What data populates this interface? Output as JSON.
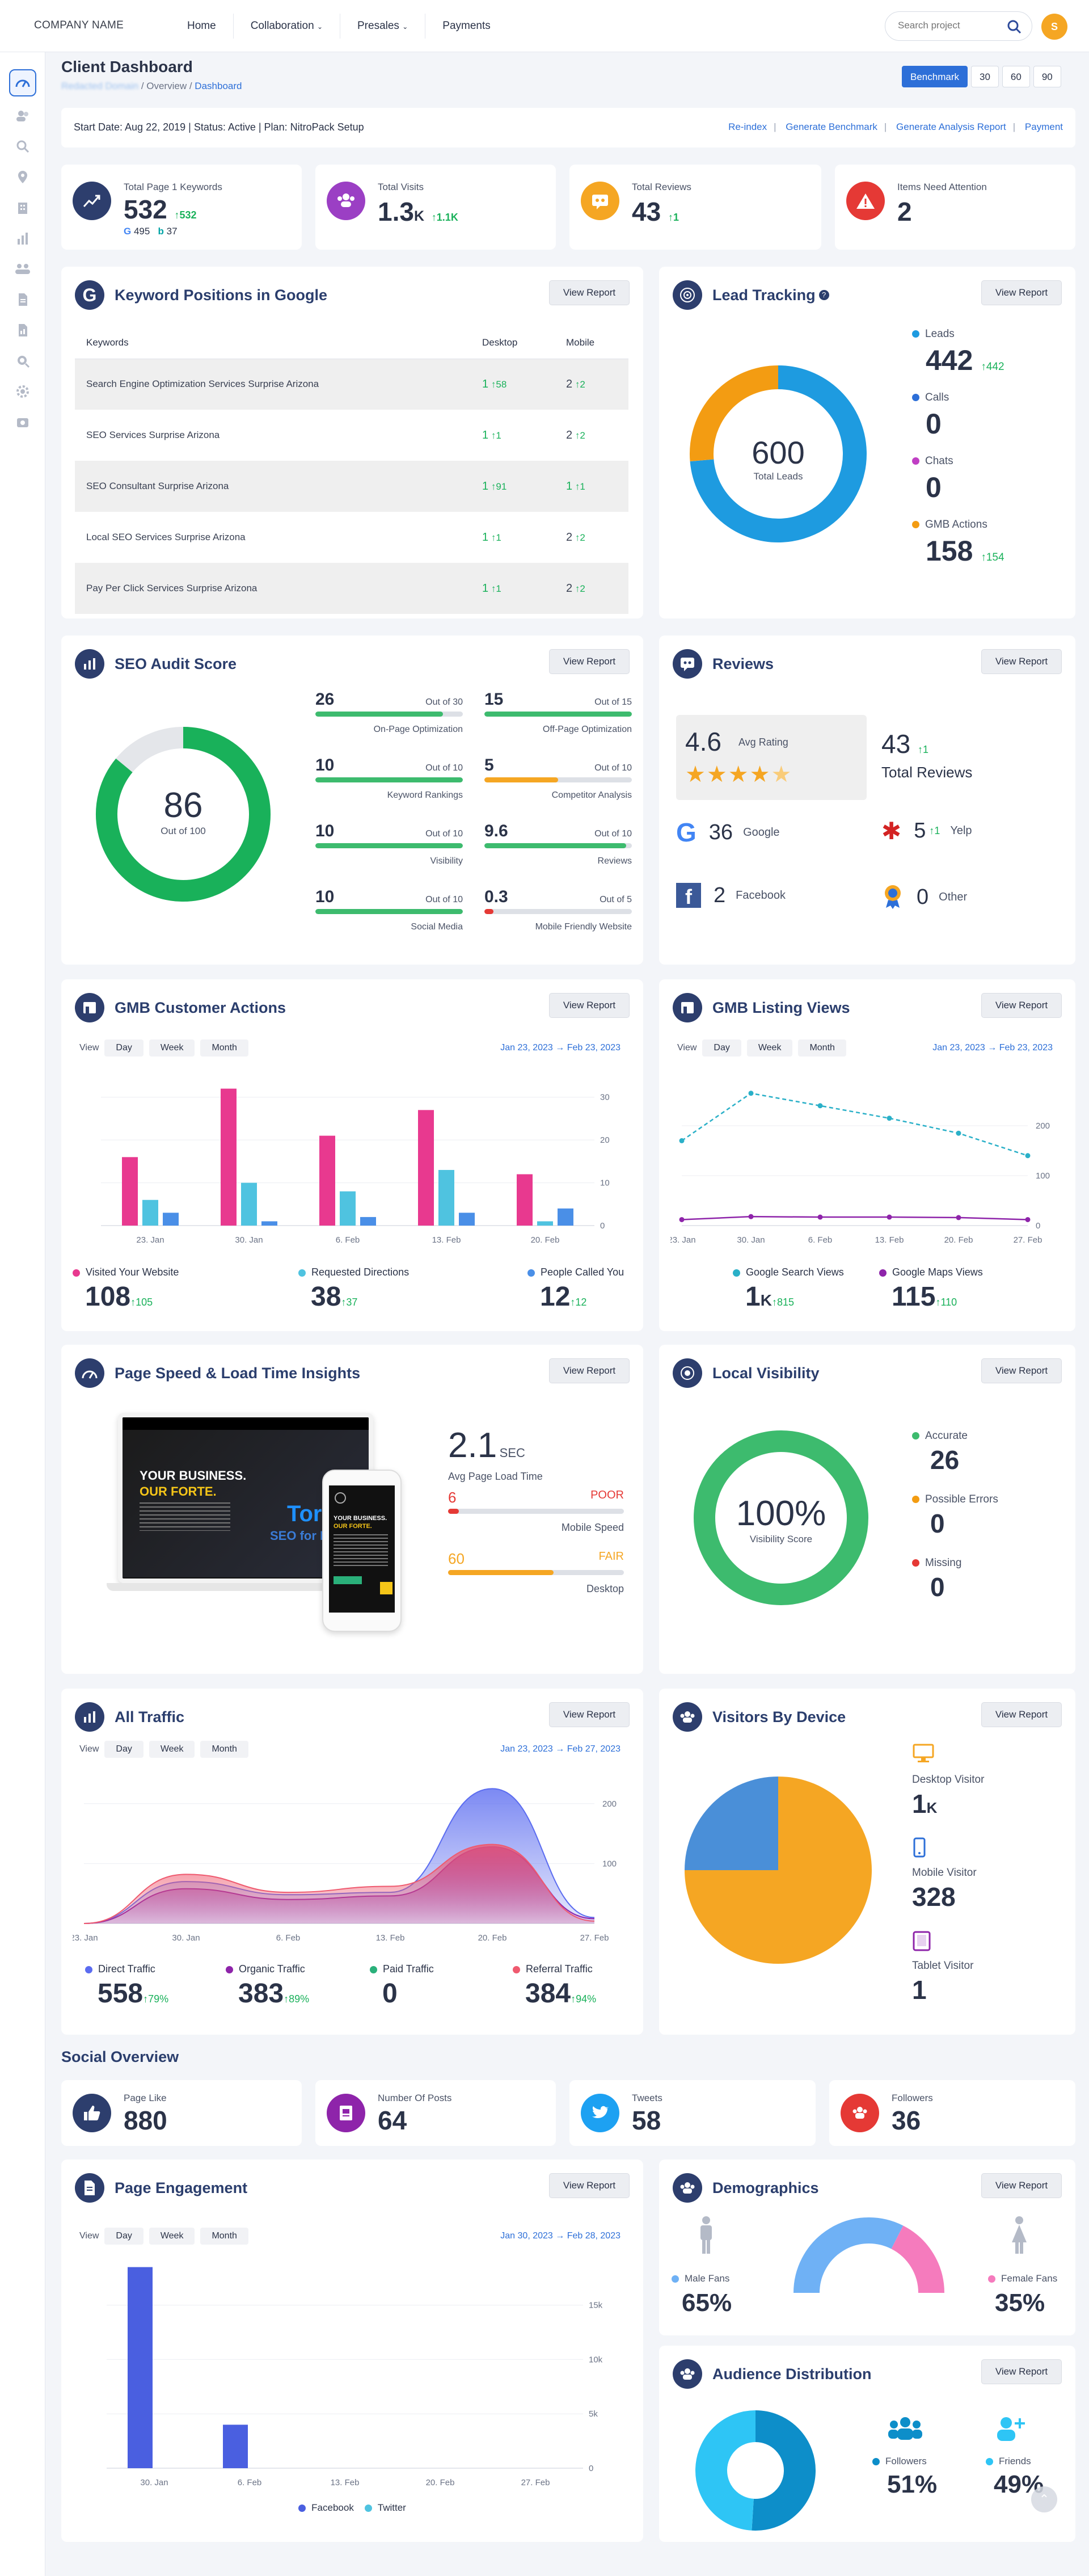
{
  "header": {
    "brand": "COMPANY NAME",
    "nav": [
      "Home",
      "Collaboration",
      "Presales",
      "Payments"
    ],
    "search_placeholder": "Search project",
    "avatar": "S"
  },
  "page": {
    "title": "Client Dashboard",
    "crumb_site": "Redacted Domain",
    "crumb_overview": "/ Overview /",
    "crumb_current": "Dashboard",
    "benchmark": "Benchmark",
    "periods": [
      "30",
      "60",
      "90"
    ]
  },
  "info": {
    "text": "Start Date: Aug 22, 2019  |  Status: Active  |  Plan: NitroPack Setup",
    "links": [
      "Re-index",
      "Generate Benchmark",
      "Generate Analysis Report",
      "Payment"
    ]
  },
  "stats": [
    {
      "label": "Total Page 1 Keywords",
      "value": "532",
      "delta": "532",
      "sub_google": "495",
      "sub_bing": "37",
      "color": "#2d3e6d"
    },
    {
      "label": "Total Visits",
      "value": "1.3",
      "suffix": "K",
      "delta": "1.1K",
      "color": "#9b3fc4"
    },
    {
      "label": "Total Reviews",
      "value": "43",
      "delta": "1",
      "color": "#f5a623"
    },
    {
      "label": "Items Need Attention",
      "value": "2",
      "color": "#e53935"
    }
  ],
  "keywords": {
    "title": "Keyword Positions in Google",
    "view": "View Report",
    "headers": [
      "Keywords",
      "Desktop",
      "Mobile"
    ],
    "rows": [
      {
        "k": "Search Engine Optimization Services Surprise Arizona",
        "d": "1",
        "dd": "58",
        "m": "2",
        "md": "2"
      },
      {
        "k": "SEO Services Surprise Arizona",
        "d": "1",
        "dd": "1",
        "m": "2",
        "md": "2"
      },
      {
        "k": "SEO Consultant Surprise Arizona",
        "d": "1",
        "dd": "91",
        "m": "1",
        "md": "1"
      },
      {
        "k": "Local SEO Services Surprise Arizona",
        "d": "1",
        "dd": "1",
        "m": "2",
        "md": "2"
      },
      {
        "k": "Pay Per Click Services Surprise Arizona",
        "d": "1",
        "dd": "1",
        "m": "2",
        "md": "2"
      }
    ]
  },
  "lead": {
    "title": "Lead Tracking",
    "view": "View Report",
    "total": "600",
    "total_label": "Total Leads",
    "items": [
      {
        "name": "Leads",
        "value": "442",
        "delta": "442",
        "color": "#1e9be0"
      },
      {
        "name": "Calls",
        "value": "0",
        "delta": "",
        "color": "#2d6fd8"
      },
      {
        "name": "Chats",
        "value": "0",
        "delta": "",
        "color": "#c03fc4"
      },
      {
        "name": "GMB Actions",
        "value": "158",
        "delta": "154",
        "color": "#f39c12"
      }
    ]
  },
  "audit": {
    "title": "SEO Audit Score",
    "view": "View Report",
    "score": "86",
    "score_label": "Out of 100",
    "score_value": 86,
    "items": [
      {
        "n": "26",
        "o": "Out of 30",
        "cap": "On-Page Optimization",
        "pct": 0.867,
        "c": "#3dbb6e"
      },
      {
        "n": "15",
        "o": "Out of 15",
        "cap": "Off-Page Optimization",
        "pct": 1,
        "c": "#3dbb6e"
      },
      {
        "n": "10",
        "o": "Out of 10",
        "cap": "Keyword Rankings",
        "pct": 1,
        "c": "#3dbb6e"
      },
      {
        "n": "5",
        "o": "Out of 10",
        "cap": "Competitor Analysis",
        "pct": 0.5,
        "c": "#f5a623"
      },
      {
        "n": "10",
        "o": "Out of 10",
        "cap": "Visibility",
        "pct": 1,
        "c": "#3dbb6e"
      },
      {
        "n": "9.6",
        "o": "Out of 10",
        "cap": "Reviews",
        "pct": 0.96,
        "c": "#3dbb6e"
      },
      {
        "n": "10",
        "o": "Out of 10",
        "cap": "Social Media",
        "pct": 1,
        "c": "#3dbb6e"
      },
      {
        "n": "0.3",
        "o": "Out of 5",
        "cap": "Mobile Friendly Website",
        "pct": 0.06,
        "c": "#e53935"
      }
    ]
  },
  "reviews": {
    "title": "Reviews",
    "view": "View Report",
    "avg": "4.6",
    "avg_label": "Avg Rating",
    "total": "43",
    "total_delta": "1",
    "total_label": "Total Reviews",
    "sources": [
      {
        "name": "Google",
        "v": "36"
      },
      {
        "name": "Yelp",
        "v": "5",
        "d": "1"
      },
      {
        "name": "Facebook",
        "v": "2"
      },
      {
        "name": "Other",
        "v": "0"
      }
    ]
  },
  "gmb_actions": {
    "title": "GMB Customer Actions",
    "view": "View Report",
    "views": [
      "View",
      "Day",
      "Week",
      "Month"
    ],
    "range": "Jan 23, 2023  →  Feb 23, 2023",
    "legend": [
      {
        "name": "Visited Your Website",
        "v": "108",
        "d": "105",
        "c": "#e8398f"
      },
      {
        "name": "Requested Directions",
        "v": "38",
        "d": "37",
        "c": "#4fc3e0"
      },
      {
        "name": "People Called You",
        "v": "12",
        "d": "12",
        "c": "#4a8fe7"
      }
    ]
  },
  "gmb_views": {
    "title": "GMB Listing Views",
    "view": "View Report",
    "views": [
      "View",
      "Day",
      "Week",
      "Month"
    ],
    "range": "Jan 23, 2023  →  Feb 23, 2023",
    "legend": [
      {
        "name": "Google Search Views",
        "v": "1",
        "suffix": "K",
        "d": "815",
        "c": "#2ab0c8"
      },
      {
        "name": "Google Maps Views",
        "v": "115",
        "d": "110",
        "c": "#8e24aa"
      }
    ]
  },
  "speed": {
    "title": "Page Speed & Load Time Insights",
    "view": "View Report",
    "time": "2.1",
    "unit": "SEC",
    "time_label": "Avg Page Load Time",
    "mobile": {
      "v": "6",
      "status": "POOR",
      "label": "Mobile Speed",
      "pct": 0.06
    },
    "desktop": {
      "v": "60",
      "status": "FAIR",
      "label": "Desktop",
      "pct": 0.6
    },
    "mock": {
      "h1": "YOUR BUSINESS.",
      "h2": "OUR FORTE.",
      "brand": "Toro",
      "sub": "SEO for Eth"
    }
  },
  "local": {
    "title": "Local Visibility",
    "view": "View Report",
    "score": "100%",
    "score_label": "Visibility Score",
    "items": [
      {
        "name": "Accurate",
        "v": "26",
        "c": "#3dbb6e"
      },
      {
        "name": "Possible Errors",
        "v": "0",
        "c": "#f39c12"
      },
      {
        "name": "Missing",
        "v": "0",
        "c": "#e53935"
      }
    ]
  },
  "traffic": {
    "title": "All Traffic",
    "view": "View Report",
    "views": [
      "View",
      "Day",
      "Week",
      "Month"
    ],
    "range": "Jan 23, 2023  →  Feb 27, 2023",
    "legend": [
      {
        "name": "Direct Traffic",
        "v": "558",
        "d": "79%",
        "c": "#5b6cf0"
      },
      {
        "name": "Organic Traffic",
        "v": "383",
        "d": "89%",
        "c": "#8e24aa"
      },
      {
        "name": "Paid Traffic",
        "v": "0",
        "d": "",
        "c": "#2ab07a"
      },
      {
        "name": "Referral Traffic",
        "v": "384",
        "d": "94%",
        "c": "#ef5a6f"
      }
    ]
  },
  "device": {
    "title": "Visitors By Device",
    "view": "View Report",
    "items": [
      {
        "name": "Desktop Visitor",
        "v": "1",
        "suffix": "K",
        "c": "#f5a623"
      },
      {
        "name": "Mobile Visitor",
        "v": "328",
        "c": "#2d6fd8"
      },
      {
        "name": "Tablet Visitor",
        "v": "1",
        "c": "#8e24aa"
      }
    ]
  },
  "social": {
    "title": "Social Overview",
    "items": [
      {
        "name": "Page Like",
        "v": "880",
        "c": "#2d3e6d"
      },
      {
        "name": "Number Of Posts",
        "v": "64",
        "c": "#8e24aa"
      },
      {
        "name": "Tweets",
        "v": "58",
        "c": "#1da1f2"
      },
      {
        "name": "Followers",
        "v": "36",
        "c": "#e53935"
      }
    ]
  },
  "engagement": {
    "title": "Page Engagement",
    "view": "View Report",
    "views": [
      "View",
      "Day",
      "Week",
      "Month"
    ],
    "range": "Jan 30, 2023  →  Feb 28, 2023",
    "legend": [
      "Facebook",
      "Twitter"
    ]
  },
  "demo": {
    "title": "Demographics",
    "view": "View Report",
    "male_label": "Male Fans",
    "male": "65%",
    "female_label": "Female Fans",
    "female": "35%"
  },
  "audience": {
    "title": "Audience Distribution",
    "view": "View Report",
    "followers_label": "Followers",
    "followers": "51%",
    "friends_label": "Friends",
    "friends": "49%"
  },
  "chart_data": [
    {
      "type": "bar",
      "title": "GMB Customer Actions",
      "categories": [
        "23. Jan",
        "30. Jan",
        "6. Feb",
        "13. Feb",
        "20. Feb"
      ],
      "ylim": [
        0,
        35
      ],
      "yticks": [
        0,
        10,
        20,
        30
      ],
      "series": [
        {
          "name": "Visited Your Website",
          "values": [
            16,
            32,
            21,
            27,
            12
          ],
          "color": "#e8398f"
        },
        {
          "name": "Requested Directions",
          "values": [
            6,
            10,
            8,
            13,
            1
          ],
          "color": "#4fc3e0"
        },
        {
          "name": "People Called You",
          "values": [
            3,
            1,
            2,
            3,
            4
          ],
          "color": "#4a8fe7"
        }
      ]
    },
    {
      "type": "line",
      "title": "GMB Listing Views",
      "categories": [
        "23. Jan",
        "30. Jan",
        "6. Feb",
        "13. Feb",
        "20. Feb",
        "27. Feb"
      ],
      "ylim": [
        0,
        300
      ],
      "yticks": [
        0,
        100,
        200
      ],
      "series": [
        {
          "name": "Google Search Views",
          "values": [
            170,
            265,
            240,
            215,
            185,
            140
          ],
          "color": "#2ab0c8",
          "dashed": true
        },
        {
          "name": "Google Maps Views",
          "values": [
            12,
            18,
            17,
            17,
            16,
            12
          ],
          "color": "#8e24aa"
        }
      ]
    },
    {
      "type": "area",
      "title": "All Traffic",
      "categories": [
        "23. Jan",
        "30. Jan",
        "6. Feb",
        "13. Feb",
        "20. Feb",
        "27. Feb"
      ],
      "ylim": [
        0,
        250
      ],
      "yticks": [
        100,
        200
      ],
      "series": [
        {
          "name": "Direct Traffic",
          "values": [
            0,
            70,
            48,
            52,
            225,
            10
          ],
          "color": "#5b6cf0"
        },
        {
          "name": "Organic Traffic",
          "values": [
            0,
            58,
            40,
            46,
            128,
            8
          ],
          "color": "#8e24aa"
        },
        {
          "name": "Referral Traffic",
          "values": [
            0,
            82,
            52,
            62,
            132,
            4
          ],
          "color": "#ef5a6f"
        }
      ]
    },
    {
      "type": "bar",
      "title": "Page Engagement",
      "categories": [
        "30. Jan",
        "6. Feb",
        "13. Feb",
        "20. Feb",
        "27. Feb"
      ],
      "ylim": [
        0,
        19000
      ],
      "yticks": [
        0,
        5000,
        10000,
        15000
      ],
      "ytick_labels": [
        "0",
        "5k",
        "10k",
        "15k"
      ],
      "series": [
        {
          "name": "Facebook",
          "values": [
            18500,
            4000,
            0,
            0,
            0
          ],
          "color": "#4a5fe0"
        },
        {
          "name": "Twitter",
          "values": [
            0,
            0,
            0,
            0,
            0
          ],
          "color": "#4fc3e0"
        }
      ]
    },
    {
      "type": "pie",
      "title": "Lead Tracking",
      "labels": [
        "Leads",
        "GMB Actions"
      ],
      "values": [
        442,
        158
      ],
      "colors": [
        "#1e9be0",
        "#f39c12"
      ]
    },
    {
      "type": "pie",
      "title": "Visitors By Device",
      "labels": [
        "Desktop Visitor",
        "Mobile Visitor"
      ],
      "values": [
        75,
        25
      ],
      "colors": [
        "#f5a623",
        "#4a8fd8"
      ]
    },
    {
      "type": "pie",
      "title": "Demographics",
      "labels": [
        "Male Fans",
        "Female Fans"
      ],
      "values": [
        65,
        35
      ],
      "colors": [
        "#6fb1f5",
        "#f57bbd"
      ]
    },
    {
      "type": "pie",
      "title": "Audience Distribution",
      "labels": [
        "Followers",
        "Friends"
      ],
      "values": [
        51,
        49
      ],
      "colors": [
        "#0d8ec9",
        "#2ec5f5"
      ]
    }
  ]
}
